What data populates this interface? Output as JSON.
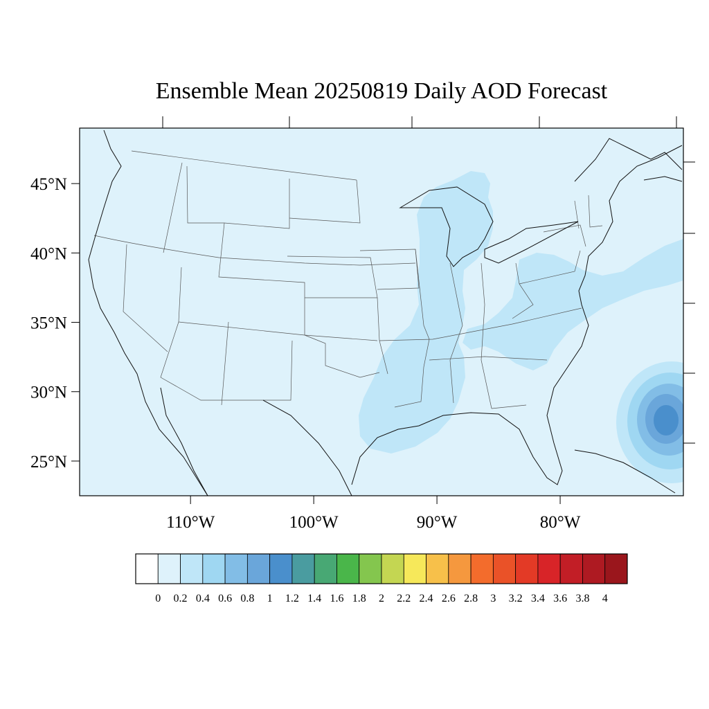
{
  "title": "Ensemble Mean 20250819 Daily AOD Forecast",
  "map": {
    "lon_range": [
      -119,
      -70
    ],
    "lat_range": [
      22.5,
      49
    ],
    "background_level_color": "#def2fb",
    "lat_ticks": [
      {
        "value": 45,
        "label": "45°N"
      },
      {
        "value": 40,
        "label": "40°N"
      },
      {
        "value": 35,
        "label": "35°N"
      },
      {
        "value": 30,
        "label": "30°N"
      },
      {
        "value": 25,
        "label": "25°N"
      }
    ],
    "lon_ticks": [
      {
        "value": -110,
        "label": "110°W"
      },
      {
        "value": -100,
        "label": "100°W"
      },
      {
        "value": -90,
        "label": "90°W"
      },
      {
        "value": -80,
        "label": "80°W"
      }
    ],
    "aod_features": [
      {
        "name": "midwest-plume",
        "level": 0.2,
        "color": "#bfe6f8"
      },
      {
        "name": "mid-atlantic-plume",
        "level": 0.2,
        "color": "#bfe6f8"
      },
      {
        "name": "offshore-maximum",
        "level": 1.0,
        "color": "#4a8fcc"
      }
    ]
  },
  "colorbar": {
    "levels": [
      "0",
      "0.2",
      "0.4",
      "0.6",
      "0.8",
      "1",
      "1.2",
      "1.4",
      "1.6",
      "1.8",
      "2",
      "2.2",
      "2.4",
      "2.6",
      "2.8",
      "3",
      "3.2",
      "3.4",
      "3.6",
      "3.8",
      "4"
    ],
    "colors": [
      "#ffffff",
      "#def2fb",
      "#bfe6f8",
      "#9fd7f2",
      "#82bde6",
      "#6aa6da",
      "#4a8fcc",
      "#4a9ca0",
      "#48a874",
      "#4ab64a",
      "#84c64e",
      "#c4d652",
      "#f6e85a",
      "#f7c04a",
      "#f5983e",
      "#f36c2c",
      "#ea5228",
      "#e33a26",
      "#d82428",
      "#c21e26",
      "#ae1a22",
      "#9a161c"
    ]
  }
}
